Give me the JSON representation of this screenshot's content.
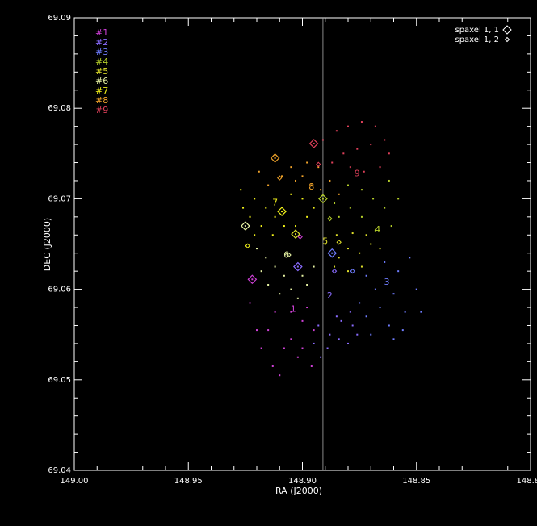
{
  "chart_data": {
    "type": "scatter",
    "title": "",
    "xlabel": "RA (J2000)",
    "ylabel": "DEC (J2000)",
    "xlim": [
      149.0,
      148.8
    ],
    "ylim": [
      69.04,
      69.09
    ],
    "x_ticks": [
      {
        "value": 149.0,
        "label": "149.00"
      },
      {
        "value": 148.95,
        "label": "148.95"
      },
      {
        "value": 148.9,
        "label": "148.90"
      },
      {
        "value": 148.85,
        "label": "148.85"
      },
      {
        "value": 148.8,
        "label": "148.80"
      }
    ],
    "y_ticks": [
      {
        "value": 69.04,
        "label": "69.04"
      },
      {
        "value": 69.05,
        "label": "69.05"
      },
      {
        "value": 69.06,
        "label": "69.06"
      },
      {
        "value": 69.07,
        "label": "69.07"
      },
      {
        "value": 69.08,
        "label": "69.08"
      },
      {
        "value": 69.09,
        "label": "69.09"
      }
    ],
    "grid": false,
    "crosshair": {
      "x": 148.891,
      "y": 69.065,
      "color": "#aaaaaa"
    },
    "frame_color": "#ffffff",
    "groups_legend": {
      "placement": "top-left",
      "entries": [
        {
          "label": "#1",
          "color": "#d040d8"
        },
        {
          "label": "#2",
          "color": "#8a6cff"
        },
        {
          "label": "#3",
          "color": "#6f7dff"
        },
        {
          "label": "#4",
          "color": "#b6d02a"
        },
        {
          "label": "#5",
          "color": "#dede2a"
        },
        {
          "label": "#6",
          "color": "#e7f3a4"
        },
        {
          "label": "#7",
          "color": "#f2f21a"
        },
        {
          "label": "#8",
          "color": "#f2a42a"
        },
        {
          "label": "#9",
          "color": "#e0405a"
        }
      ]
    },
    "marker_legend": {
      "placement": "top-right",
      "entries": [
        {
          "label": "spaxel 1, 1",
          "marker": "large-diamond"
        },
        {
          "label": "spaxel 1, 2",
          "marker": "small-diamond"
        }
      ]
    },
    "series": [
      {
        "name": "#1",
        "color": "#d040d8",
        "points": [
          [
            148.923,
            69.0585
          ],
          [
            148.92,
            69.0555
          ],
          [
            148.918,
            69.0535
          ],
          [
            148.913,
            69.0515
          ],
          [
            148.91,
            69.0505
          ],
          [
            148.905,
            69.0545
          ],
          [
            148.9,
            69.0535
          ],
          [
            148.896,
            69.0515
          ],
          [
            148.912,
            69.0575
          ],
          [
            148.905,
            69.0575
          ],
          [
            148.9,
            69.0565
          ],
          [
            148.895,
            69.0555
          ],
          [
            148.902,
            69.0525
          ],
          [
            148.908,
            69.0535
          ],
          [
            148.915,
            69.0555
          ],
          [
            148.898,
            69.058
          ]
        ],
        "big": [
          148.922,
          69.0611
        ],
        "small": [
          148.901,
          69.0658
        ],
        "label": {
          "x": 148.904,
          "y": 69.0575,
          "text": "1"
        }
      },
      {
        "name": "#2",
        "color": "#8a6cff",
        "points": [
          [
            148.893,
            69.056
          ],
          [
            148.888,
            69.055
          ],
          [
            148.884,
            69.0545
          ],
          [
            148.889,
            69.0535
          ],
          [
            148.895,
            69.054
          ],
          [
            148.88,
            69.054
          ],
          [
            148.876,
            69.055
          ],
          [
            148.878,
            69.056
          ],
          [
            148.883,
            69.0565
          ],
          [
            148.892,
            69.0525
          ],
          [
            148.885,
            69.057
          ],
          [
            148.879,
            69.0575
          ]
        ],
        "big": [
          148.902,
          69.0625
        ],
        "small": [
          148.886,
          69.062
        ],
        "label": {
          "x": 148.888,
          "y": 69.059,
          "text": "2"
        }
      },
      {
        "name": "#3",
        "color": "#6f7dff",
        "points": [
          [
            148.868,
            69.06
          ],
          [
            148.86,
            69.0595
          ],
          [
            148.855,
            69.0575
          ],
          [
            148.85,
            69.06
          ],
          [
            148.856,
            69.0555
          ],
          [
            148.862,
            69.056
          ],
          [
            148.866,
            69.058
          ],
          [
            148.872,
            69.057
          ],
          [
            148.875,
            69.0585
          ],
          [
            148.87,
            69.055
          ],
          [
            148.858,
            69.062
          ],
          [
            148.864,
            69.063
          ],
          [
            148.853,
            69.0635
          ],
          [
            148.848,
            69.0575
          ],
          [
            148.872,
            69.0615
          ],
          [
            148.86,
            69.0545
          ]
        ],
        "big": [
          148.887,
          69.064
        ],
        "small": [
          148.878,
          69.062
        ],
        "label": {
          "x": 148.863,
          "y": 69.0605,
          "text": "3"
        }
      },
      {
        "name": "#4",
        "color": "#b6d02a",
        "points": [
          [
            148.88,
            69.0715
          ],
          [
            148.874,
            69.071
          ],
          [
            148.869,
            69.07
          ],
          [
            148.864,
            69.069
          ],
          [
            148.861,
            69.067
          ],
          [
            148.868,
            69.0665
          ],
          [
            148.874,
            69.068
          ],
          [
            148.879,
            69.069
          ],
          [
            148.884,
            69.068
          ],
          [
            148.886,
            69.0695
          ],
          [
            148.858,
            69.07
          ],
          [
            148.862,
            69.072
          ]
        ],
        "big": [
          148.891,
          69.07
        ],
        "small": [
          148.888,
          69.0678
        ],
        "label": {
          "x": 148.867,
          "y": 69.0663,
          "text": "4"
        }
      },
      {
        "name": "#5",
        "color": "#dede2a",
        "points": [
          [
            148.88,
            69.0645
          ],
          [
            148.875,
            69.064
          ],
          [
            148.87,
            69.065
          ],
          [
            148.866,
            69.0645
          ],
          [
            148.884,
            69.0635
          ],
          [
            148.89,
            69.065
          ],
          [
            148.885,
            69.066
          ],
          [
            148.878,
            69.0662
          ],
          [
            148.872,
            69.066
          ],
          [
            148.886,
            69.0625
          ],
          [
            148.88,
            69.062
          ],
          [
            148.874,
            69.0625
          ]
        ],
        "big": [
          148.903,
          69.0661
        ],
        "small": [
          148.884,
          69.0652
        ],
        "label": {
          "x": 148.89,
          "y": 69.065,
          "text": "5"
        }
      },
      {
        "name": "#6",
        "color": "#e7f3a4",
        "points": [
          [
            148.92,
            69.0645
          ],
          [
            148.916,
            69.0635
          ],
          [
            148.912,
            69.0625
          ],
          [
            148.908,
            69.0615
          ],
          [
            148.905,
            69.06
          ],
          [
            148.91,
            69.0595
          ],
          [
            148.915,
            69.0605
          ],
          [
            148.918,
            69.062
          ],
          [
            148.9,
            69.0615
          ],
          [
            148.895,
            69.0625
          ],
          [
            148.898,
            69.0605
          ],
          [
            148.902,
            69.059
          ]
        ],
        "big": [
          148.925,
          69.067
        ],
        "small": [
          148.906,
          69.0638
        ],
        "label": {
          "x": 148.907,
          "y": 69.0635,
          "text": "6"
        }
      },
      {
        "name": "#7",
        "color": "#f2f21a",
        "points": [
          [
            148.927,
            69.071
          ],
          [
            148.921,
            69.07
          ],
          [
            148.916,
            69.069
          ],
          [
            148.912,
            69.068
          ],
          [
            148.908,
            69.067
          ],
          [
            148.903,
            69.067
          ],
          [
            148.898,
            69.068
          ],
          [
            148.895,
            69.069
          ],
          [
            148.9,
            69.07
          ],
          [
            148.905,
            69.0705
          ],
          [
            148.923,
            69.068
          ],
          [
            148.918,
            69.067
          ],
          [
            148.913,
            69.066
          ],
          [
            148.921,
            69.066
          ],
          [
            148.926,
            69.069
          ]
        ],
        "big": [
          148.909,
          69.0686
        ],
        "small": [
          148.924,
          69.0648
        ],
        "label": {
          "x": 148.912,
          "y": 69.0693,
          "text": "7"
        }
      },
      {
        "name": "#8",
        "color": "#f2a42a",
        "points": [
          [
            148.905,
            69.0735
          ],
          [
            148.9,
            69.0725
          ],
          [
            148.896,
            69.0715
          ],
          [
            148.892,
            69.071
          ],
          [
            148.888,
            69.072
          ],
          [
            148.893,
            69.0735
          ],
          [
            148.898,
            69.074
          ],
          [
            148.903,
            69.072
          ],
          [
            148.909,
            69.0725
          ],
          [
            148.915,
            69.0715
          ],
          [
            148.919,
            69.073
          ],
          [
            148.884,
            69.0705
          ]
        ],
        "big": [
          148.912,
          69.0745
        ],
        "small": [
          148.91,
          69.0723
        ],
        "label": {
          "x": 148.896,
          "y": 69.071,
          "text": "8"
        }
      },
      {
        "name": "#9",
        "color": "#e0405a",
        "points": [
          [
            148.885,
            69.0775
          ],
          [
            148.88,
            69.078
          ],
          [
            148.874,
            69.0785
          ],
          [
            148.868,
            69.078
          ],
          [
            148.864,
            69.0765
          ],
          [
            148.87,
            69.076
          ],
          [
            148.876,
            69.0755
          ],
          [
            148.882,
            69.075
          ],
          [
            148.887,
            69.074
          ],
          [
            148.879,
            69.0735
          ],
          [
            148.873,
            69.073
          ],
          [
            148.866,
            69.0735
          ],
          [
            148.862,
            69.075
          ],
          [
            148.891,
            69.0765
          ]
        ],
        "big": [
          148.895,
          69.0761
        ],
        "small": [
          148.893,
          69.0738
        ],
        "label": {
          "x": 148.876,
          "y": 69.0725,
          "text": "9"
        }
      }
    ]
  }
}
